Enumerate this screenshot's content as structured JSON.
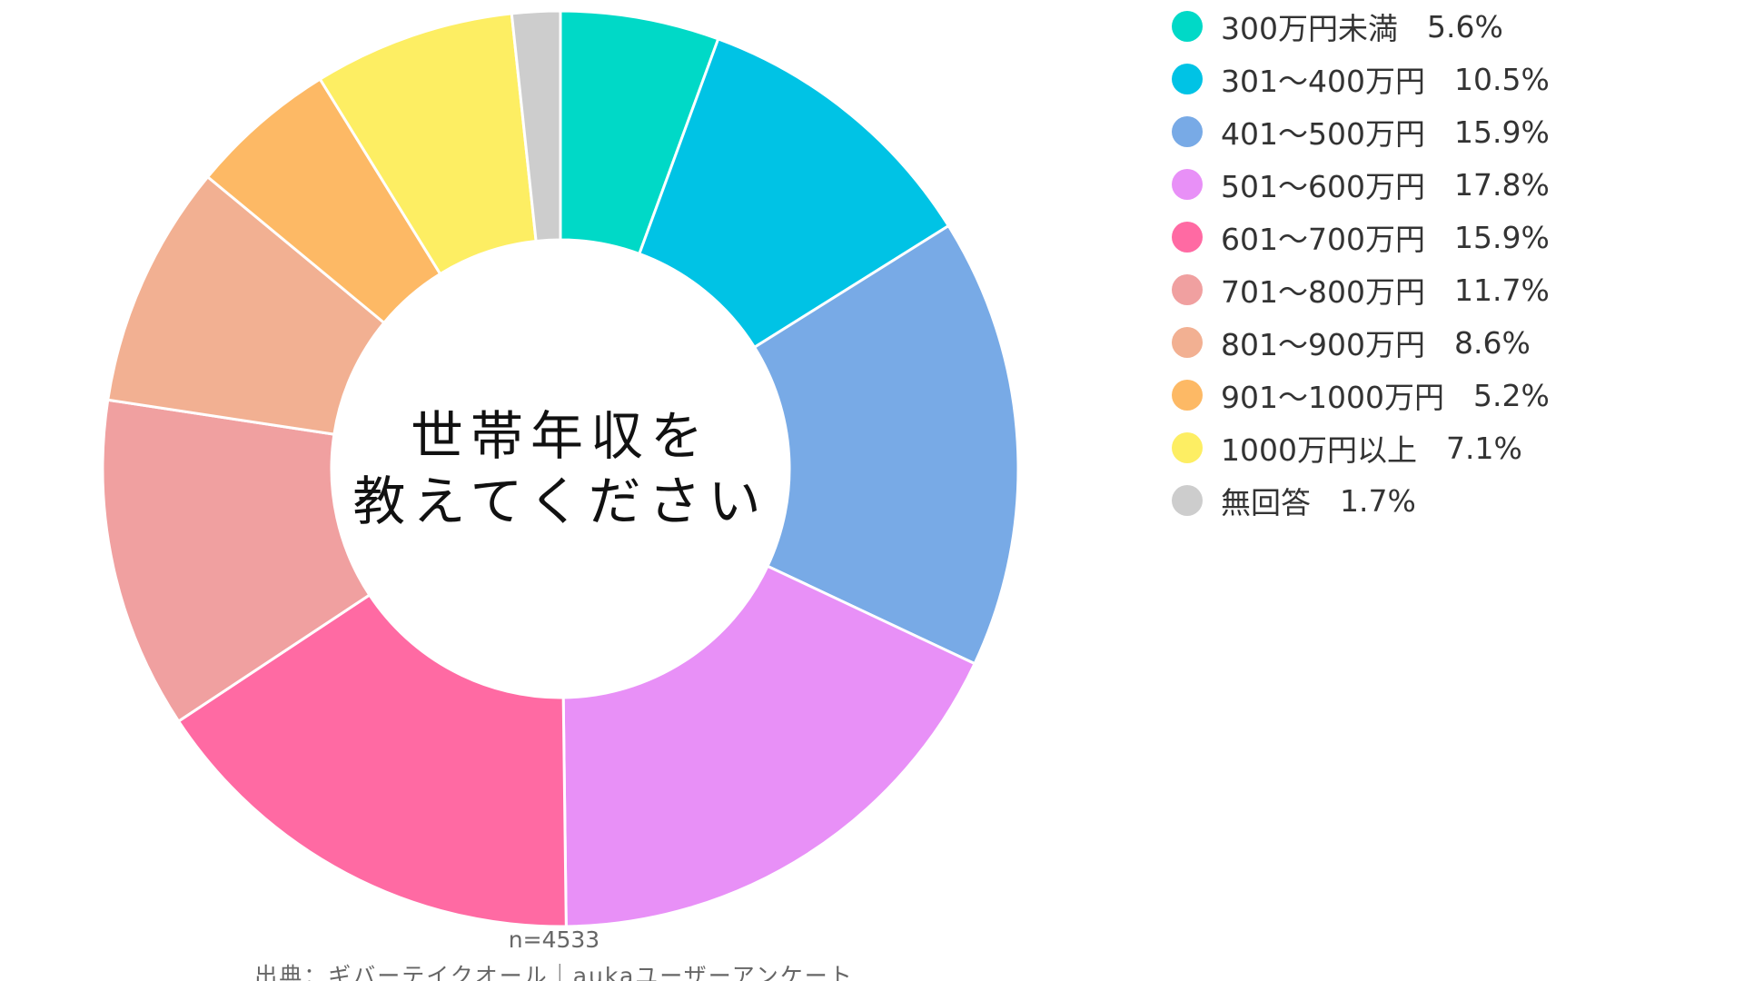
{
  "chart_data": {
    "type": "pie",
    "variant": "donut",
    "title": "世帯年収を\n教えてください",
    "title_lines": [
      "世帯年収を",
      "教えてください"
    ],
    "categories": [
      "300万円未満",
      "301〜400万円",
      "401〜500万円",
      "501〜600万円",
      "601〜700万円",
      "701〜800万円",
      "801〜900万円",
      "901〜1000万円",
      "1000万円以上",
      "無回答"
    ],
    "values": [
      5.6,
      10.5,
      15.9,
      17.8,
      15.9,
      11.7,
      8.6,
      5.2,
      7.1,
      1.7
    ],
    "value_labels": [
      "5.6%",
      "10.5%",
      "15.9%",
      "17.8%",
      "15.9%",
      "11.7%",
      "8.6%",
      "5.2%",
      "7.1%",
      "1.7%"
    ],
    "colors": [
      "#00d9c7",
      "#00c3e5",
      "#78aae6",
      "#e890f7",
      "#ff6aa3",
      "#f0a0a0",
      "#f2b092",
      "#fdb965",
      "#fdee63",
      "#cdcdcd"
    ],
    "legend_position": "right",
    "slice_border_color": "#ffffff",
    "start_angle": "top",
    "direction": "clockwise"
  },
  "footer": {
    "sample_size": "n=4533",
    "source": "出典：ギバーテイクオール｜aukaユーザーアンケート"
  }
}
